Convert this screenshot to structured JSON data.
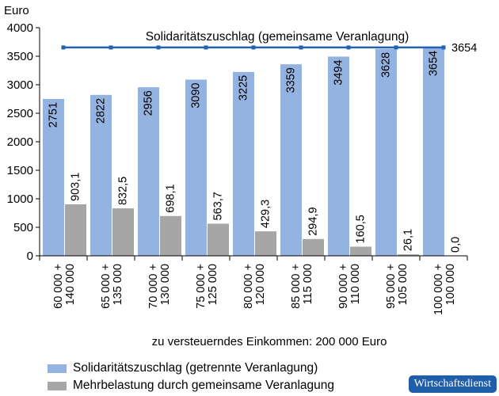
{
  "chart_data": {
    "type": "bar",
    "unit_label": "Euro",
    "xlabel": "zu versteuerndes Einkommen: 200 000 Euro",
    "ylim": [
      0,
      4000
    ],
    "yticks": [
      0,
      500,
      1000,
      1500,
      2000,
      2500,
      3000,
      3500,
      4000
    ],
    "categories": [
      [
        "60 000 +",
        "140 000"
      ],
      [
        "65 000 +",
        "135 000"
      ],
      [
        "70 000 +",
        "130 000"
      ],
      [
        "75 000 +",
        "125 000"
      ],
      [
        "80 000 +",
        "120 000"
      ],
      [
        "85 000 +",
        "115 000"
      ],
      [
        "90 000 +",
        "110 000"
      ],
      [
        "95 000 +",
        "105 000"
      ],
      [
        "100 000 +",
        "100 000"
      ]
    ],
    "series": [
      {
        "name": "Solidaritätszuschlag (getrennte Veranlagung)",
        "type": "bar",
        "color": "#95b3e0",
        "values": [
          2751,
          2822,
          2956,
          3090,
          3225,
          3359,
          3494,
          3628,
          3654
        ],
        "labels": [
          "2751",
          "2822",
          "2956",
          "3090",
          "3225",
          "3359",
          "3494",
          "3628",
          "3654"
        ]
      },
      {
        "name": "Mehrbelastung durch gemeinsame Veranlagung",
        "type": "bar",
        "color": "#a6a6a6",
        "values": [
          903.1,
          832.5,
          698.1,
          563.7,
          429.3,
          294.9,
          160.5,
          26.1,
          0.0
        ],
        "labels": [
          "903,1",
          "832,5",
          "698,1",
          "563,7",
          "429,3",
          "294,9",
          "160,5",
          "26,1",
          "0,0"
        ]
      },
      {
        "name": "Solidaritätszuschlag (gemeinsame Veranlagung)",
        "type": "line",
        "color": "#2461b3",
        "values": [
          3654,
          3654,
          3654,
          3654,
          3654,
          3654,
          3654,
          3654,
          3654
        ],
        "end_label": "3654"
      }
    ],
    "grid": false,
    "legend_position": "bottom-left"
  },
  "brand": "Wirtschaftsdienst"
}
